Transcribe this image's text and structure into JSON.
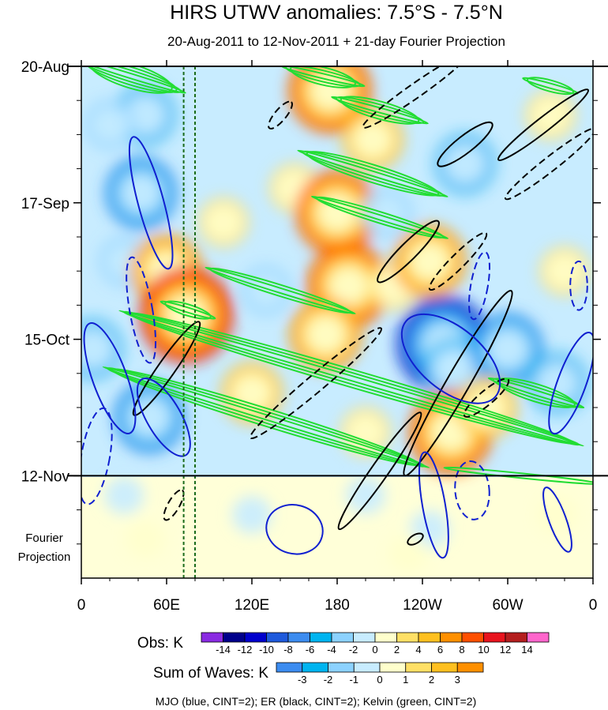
{
  "chart_data": {
    "type": "heatmap",
    "title": "HIRS UTWV anomalies: 7.5°S - 7.5°N",
    "subtitle": "20-Aug-2011 to 12-Nov-2011 + 21-day Fourier Projection",
    "x_axis": {
      "ticks": [
        {
          "label": "0",
          "lon": 0
        },
        {
          "label": "60E",
          "lon": 60
        },
        {
          "label": "120E",
          "lon": 120
        },
        {
          "label": "180",
          "lon": 180
        },
        {
          "label": "120W",
          "lon": 240
        },
        {
          "label": "60W",
          "lon": 300
        },
        {
          "label": "0",
          "lon": 360
        }
      ],
      "range": [
        0,
        360
      ]
    },
    "y_axis": {
      "ticks": [
        {
          "label": "20-Aug",
          "day": 0
        },
        {
          "label": "17-Sep",
          "day": 28
        },
        {
          "label": "15-Oct",
          "day": 56
        },
        {
          "label": "12-Nov",
          "day": 84
        }
      ],
      "range": [
        0,
        105
      ],
      "projection_label": "Fourier\nProjection"
    },
    "observation_end_day": 84,
    "reference_lines_lon": [
      72,
      80
    ],
    "obs_colorbar": {
      "label": "Obs: K",
      "levels": [
        -14,
        -12,
        -10,
        -8,
        -6,
        -4,
        -2,
        0,
        2,
        4,
        6,
        8,
        10,
        12,
        14
      ],
      "colors": [
        "#8a2be2",
        "#00008b",
        "#0000cd",
        "#1e5adc",
        "#3c8cf0",
        "#00b4f0",
        "#8cd2ff",
        "#c8ecff",
        "#ffffcc",
        "#ffe066",
        "#ffc020",
        "#ff9000",
        "#ff5000",
        "#e8141e",
        "#b41e1e",
        "#ff66cc"
      ]
    },
    "waves_colorbar": {
      "label": "Sum of Waves: K",
      "levels": [
        -3,
        -2,
        -1,
        0,
        1,
        2,
        3
      ],
      "colors": [
        "#3c8cf0",
        "#00b4f0",
        "#8cd2ff",
        "#c8ecff",
        "#ffffcc",
        "#ffe066",
        "#ffc020",
        "#ff9000"
      ]
    },
    "legend_note": "MJO (blue, CINT=2); ER (black, CINT=2); Kelvin (green, CINT=2)",
    "wave_colors": {
      "mjo": "#1020d0",
      "er": "#000000",
      "kelvin": "#22dd33"
    },
    "anomaly_blobs": [
      {
        "lon": 45,
        "day": 10,
        "v": -6
      },
      {
        "lon": 42,
        "day": 26,
        "v": -7
      },
      {
        "lon": 30,
        "day": 40,
        "v": -4
      },
      {
        "lon": 8,
        "day": 58,
        "v": -6
      },
      {
        "lon": 48,
        "day": 72,
        "v": -7
      },
      {
        "lon": 60,
        "day": 42,
        "v": 8
      },
      {
        "lon": 74,
        "day": 51,
        "v": 11
      },
      {
        "lon": 100,
        "day": 32,
        "v": 4
      },
      {
        "lon": 150,
        "day": 25,
        "v": 3
      },
      {
        "lon": 175,
        "day": 5,
        "v": 9
      },
      {
        "lon": 180,
        "day": 30,
        "v": 10
      },
      {
        "lon": 188,
        "day": 45,
        "v": 9
      },
      {
        "lon": 172,
        "day": 55,
        "v": 8
      },
      {
        "lon": 205,
        "day": 15,
        "v": 5
      },
      {
        "lon": 220,
        "day": 45,
        "v": 4
      },
      {
        "lon": 245,
        "day": 40,
        "v": 7
      },
      {
        "lon": 120,
        "day": 67,
        "v": 5
      },
      {
        "lon": 200,
        "day": 75,
        "v": 3
      },
      {
        "lon": 215,
        "day": 30,
        "v": -4
      },
      {
        "lon": 255,
        "day": 57,
        "v": -11
      },
      {
        "lon": 262,
        "day": 62,
        "v": -6
      },
      {
        "lon": 270,
        "day": 20,
        "v": -6
      },
      {
        "lon": 300,
        "day": 58,
        "v": -8
      },
      {
        "lon": 335,
        "day": 65,
        "v": -6
      },
      {
        "lon": 260,
        "day": 75,
        "v": 9
      },
      {
        "lon": 285,
        "day": 70,
        "v": 5
      },
      {
        "lon": 330,
        "day": 10,
        "v": 4
      },
      {
        "lon": 340,
        "day": 42,
        "v": 3
      },
      {
        "lon": 130,
        "day": 46,
        "v": -3
      },
      {
        "lon": 20,
        "day": 12,
        "v": -3
      },
      {
        "lon": 120,
        "day": 92,
        "v": -2
      },
      {
        "lon": 245,
        "day": 95,
        "v": -2
      },
      {
        "lon": 335,
        "day": 92,
        "v": 2
      },
      {
        "lon": 45,
        "day": 97,
        "v": 2
      },
      {
        "lon": 200,
        "day": 88,
        "v": -1.5
      },
      {
        "lon": 30,
        "day": 88,
        "v": -1.5
      },
      {
        "lon": 230,
        "day": 100,
        "v": 1.5
      }
    ],
    "kelvin_contours": [
      {
        "lon": 35,
        "day": 2,
        "len": 80,
        "w": 4,
        "slope": 0.09
      },
      {
        "lon": 170,
        "day": 2,
        "len": 60,
        "w": 3,
        "slope": 0.07
      },
      {
        "lon": 330,
        "day": 4,
        "len": 40,
        "w": 2,
        "slope": 0.08
      },
      {
        "lon": 210,
        "day": 9,
        "len": 70,
        "w": 3,
        "slope": 0.08
      },
      {
        "lon": 205,
        "day": 22,
        "len": 110,
        "w": 3,
        "slope": 0.09
      },
      {
        "lon": 210,
        "day": 31,
        "len": 100,
        "w": 2,
        "slope": 0.09
      },
      {
        "lon": 140,
        "day": 46,
        "len": 110,
        "w": 2,
        "slope": 0.09
      },
      {
        "lon": 190,
        "day": 64,
        "len": 340,
        "w": 3,
        "slope": 0.085
      },
      {
        "lon": 130,
        "day": 72,
        "len": 240,
        "w": 3,
        "slope": 0.09
      },
      {
        "lon": 320,
        "day": 67,
        "len": 70,
        "w": 3,
        "slope": 0.09
      },
      {
        "lon": 75,
        "day": 50,
        "len": 40,
        "w": 2,
        "slope": 0.09
      },
      {
        "lon": 310,
        "day": 84,
        "len": 110,
        "w": 1,
        "slope": 0.03
      }
    ],
    "mjo_contours": [
      {
        "lon": 49,
        "day": 28,
        "rx": 9,
        "ry": 14,
        "rot": -15,
        "dash": false
      },
      {
        "lon": 20,
        "day": 64,
        "rx": 12,
        "ry": 12,
        "rot": -20,
        "dash": false
      },
      {
        "lon": 58,
        "day": 72,
        "rx": 12,
        "ry": 9,
        "rot": -30,
        "dash": false
      },
      {
        "lon": 260,
        "day": 60,
        "rx": 22,
        "ry": 12,
        "rot": -50,
        "dash": false
      },
      {
        "lon": 345,
        "day": 65,
        "rx": 10,
        "ry": 11,
        "rot": 20,
        "dash": false
      },
      {
        "lon": 150,
        "day": 95,
        "rx": 20,
        "ry": 5,
        "rot": 15,
        "dash": false
      },
      {
        "lon": 248,
        "day": 90,
        "rx": 8,
        "ry": 11,
        "rot": -10,
        "dash": false
      },
      {
        "lon": 335,
        "day": 93,
        "rx": 6,
        "ry": 7,
        "rot": -20,
        "dash": false
      },
      {
        "lon": 42,
        "day": 50,
        "rx": 8,
        "ry": 11,
        "rot": -10,
        "dash": true
      },
      {
        "lon": 10,
        "day": 80,
        "rx": 10,
        "ry": 10,
        "rot": 10,
        "dash": true
      },
      {
        "lon": 275,
        "day": 87,
        "rx": 12,
        "ry": 6,
        "rot": -5,
        "dash": true
      },
      {
        "lon": 280,
        "day": 45,
        "rx": 6,
        "ry": 7,
        "rot": 10,
        "dash": true
      },
      {
        "lon": 350,
        "day": 45,
        "rx": 6,
        "ry": 5,
        "rot": 0,
        "dash": true
      }
    ],
    "er_contours": [
      {
        "lon": 265,
        "day": 65,
        "rx": 75,
        "ry": 8,
        "rot": -60,
        "dash": false
      },
      {
        "lon": 325,
        "day": 12,
        "rx": 40,
        "ry": 5,
        "rot": -38,
        "dash": false
      },
      {
        "lon": 270,
        "day": 16,
        "rx": 24,
        "ry": 6,
        "rot": -38,
        "dash": false
      },
      {
        "lon": 230,
        "day": 38,
        "rx": 30,
        "ry": 6,
        "rot": -45,
        "dash": false
      },
      {
        "lon": 210,
        "day": 83,
        "rx": 50,
        "ry": 6,
        "rot": -55,
        "dash": false
      },
      {
        "lon": 60,
        "day": 62,
        "rx": 40,
        "ry": 6,
        "rot": -55,
        "dash": false
      },
      {
        "lon": 235,
        "day": 5,
        "rx": 45,
        "ry": 5,
        "rot": -35,
        "dash": true
      },
      {
        "lon": 330,
        "day": 20,
        "rx": 40,
        "ry": 5,
        "rot": -38,
        "dash": true
      },
      {
        "lon": 265,
        "day": 40,
        "rx": 28,
        "ry": 5,
        "rot": -45,
        "dash": true
      },
      {
        "lon": 165,
        "day": 65,
        "rx": 60,
        "ry": 6,
        "rot": -40,
        "dash": true
      },
      {
        "lon": 285,
        "day": 68,
        "rx": 20,
        "ry": 5,
        "rot": -40,
        "dash": true
      },
      {
        "lon": 65,
        "day": 90,
        "rx": 12,
        "ry": 4,
        "rot": -60,
        "dash": true
      },
      {
        "lon": 140,
        "day": 10,
        "rx": 12,
        "ry": 4,
        "rot": -50,
        "dash": true
      },
      {
        "lon": 235,
        "day": 97,
        "rx": 6,
        "ry": 3,
        "rot": -30,
        "dash": false
      }
    ]
  }
}
